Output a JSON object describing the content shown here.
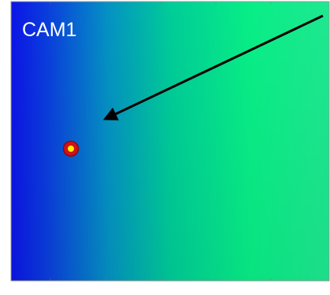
{
  "panel": {
    "label": "CAM1"
  }
}
